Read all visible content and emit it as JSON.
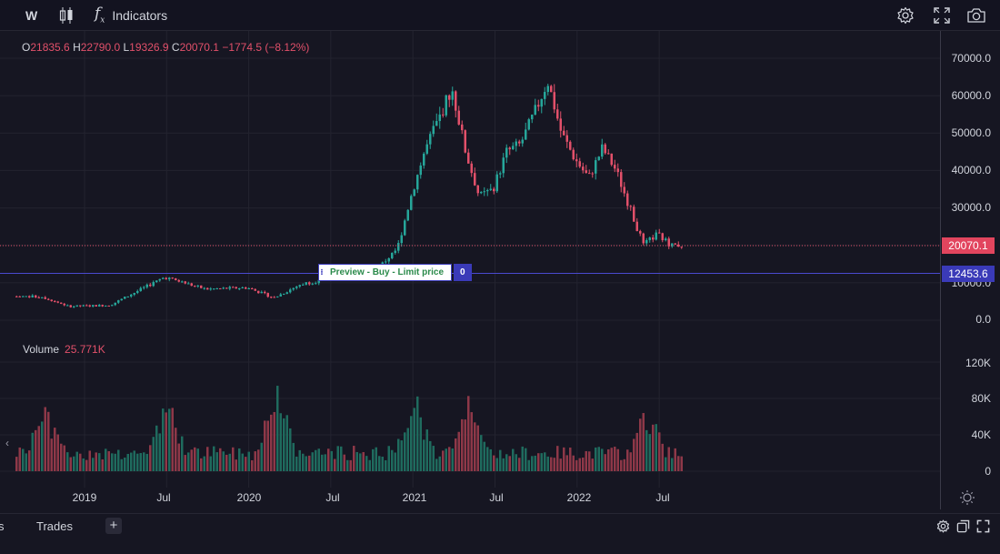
{
  "toolbar": {
    "symbol": "W",
    "indicators_label": "Indicators",
    "icons": [
      "candlestick-icon",
      "function-icon",
      "gear-icon",
      "fullscreen-icon",
      "camera-icon"
    ]
  },
  "legend": {
    "o_key": "O",
    "o_val": "21835.6",
    "h_key": "H",
    "h_val": "22790.0",
    "l_key": "L",
    "l_val": "19326.9",
    "c_key": "C",
    "c_val": "20070.1",
    "change": "−1774.5 (−8.12%)"
  },
  "volume_legend": {
    "label": "Volume",
    "value": "25.771K"
  },
  "price_axis": {
    "labels": [
      "70000.0",
      "60000.0",
      "50000.0",
      "40000.0",
      "30000.0",
      "10000.0",
      "0.0"
    ],
    "last_price": "20070.1",
    "order_price": "12453.6"
  },
  "volume_axis": {
    "labels": [
      "120K",
      "80K",
      "40K",
      "0"
    ]
  },
  "time_axis": {
    "labels": [
      "2019",
      "Jul",
      "2020",
      "Jul",
      "2021",
      "Jul",
      "2022",
      "Jul"
    ]
  },
  "order": {
    "label": "Preview - Buy - Limit price",
    "qty": "0"
  },
  "bottom": {
    "tab_prev": "s",
    "tab_trades": "Trades",
    "add_label": "+"
  },
  "colors": {
    "up": "#26a69a",
    "down": "#e2506a",
    "order": "#3a3ab8",
    "background": "#161622"
  },
  "chart_data": {
    "type": "candlestick",
    "ylim": [
      0,
      70000
    ],
    "price_anchor_dates": [
      "2018-03",
      "2018-10",
      "2018-12",
      "2019-03",
      "2019-07",
      "2019-10",
      "2020-01",
      "2020-03",
      "2020-05",
      "2020-08",
      "2020-10",
      "2020-12",
      "2021-01",
      "2021-02",
      "2021-04",
      "2021-05",
      "2021-06",
      "2021-07",
      "2021-08",
      "2021-09",
      "2021-10",
      "2021-11",
      "2021-12",
      "2022-01",
      "2022-02",
      "2022-03",
      "2022-04",
      "2022-05",
      "2022-06",
      "2022-07",
      "2022-08"
    ],
    "price_anchor_values": [
      6500,
      6300,
      3700,
      4000,
      11500,
      8300,
      8700,
      6000,
      9700,
      11600,
      11700,
      19000,
      33000,
      45000,
      62000,
      45000,
      33000,
      35000,
      45000,
      47000,
      55000,
      64000,
      50000,
      43000,
      38000,
      46000,
      40000,
      30000,
      20000,
      23000,
      20070
    ],
    "volume_ylim": [
      0,
      120000
    ],
    "volume_peaks": [
      {
        "date": "2018-10",
        "value": 80000
      },
      {
        "date": "2019-07",
        "value": 90000
      },
      {
        "date": "2020-03",
        "value": 115000
      },
      {
        "date": "2021-01",
        "value": 90000
      },
      {
        "date": "2021-05",
        "value": 90000
      },
      {
        "date": "2022-06",
        "value": 78000
      }
    ],
    "last": {
      "o": 21835.6,
      "h": 22790.0,
      "l": 19326.9,
      "c": 20070.1,
      "volume": 25771
    },
    "order_line": 12453.6
  }
}
